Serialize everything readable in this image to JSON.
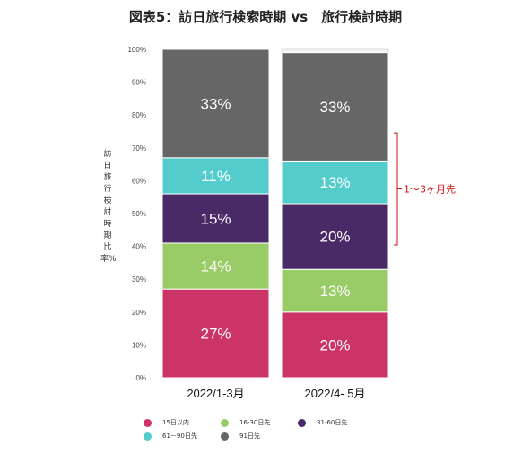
{
  "chart_data": {
    "type": "bar",
    "stacked": true,
    "title": "図表5：訪日旅行検索時期 vs　旅行検討時期",
    "ylabel": "訪日旅行検討時期比率%",
    "ylim": [
      0,
      100
    ],
    "yticks": [
      "0%",
      "10%",
      "20%",
      "30%",
      "40%",
      "50%",
      "60%",
      "70%",
      "80%",
      "90%",
      "100%"
    ],
    "categories": [
      "2022/1-3月",
      "2022/4- 5月"
    ],
    "series": [
      {
        "name": "15日以内",
        "color": "#cc3366",
        "values": [
          27,
          20
        ],
        "labels": [
          "27%",
          "20%"
        ]
      },
      {
        "name": "16-30日先",
        "color": "#99cc66",
        "values": [
          14,
          13
        ],
        "labels": [
          "14%",
          "13%"
        ]
      },
      {
        "name": "31-60日先",
        "color": "#4a2a66",
        "values": [
          15,
          20
        ],
        "labels": [
          "15%",
          "20%"
        ]
      },
      {
        "name": "61－90日先",
        "color": "#55cccc",
        "values": [
          11,
          13
        ],
        "labels": [
          "11%",
          "13%"
        ]
      },
      {
        "name": "91日先",
        "color": "#666666",
        "values": [
          33,
          33
        ],
        "labels": [
          "33%",
          "33%"
        ]
      }
    ],
    "annotation": {
      "text": "1～3ヶ月先",
      "color": "#cc1111"
    },
    "legend_position": "bottom"
  }
}
